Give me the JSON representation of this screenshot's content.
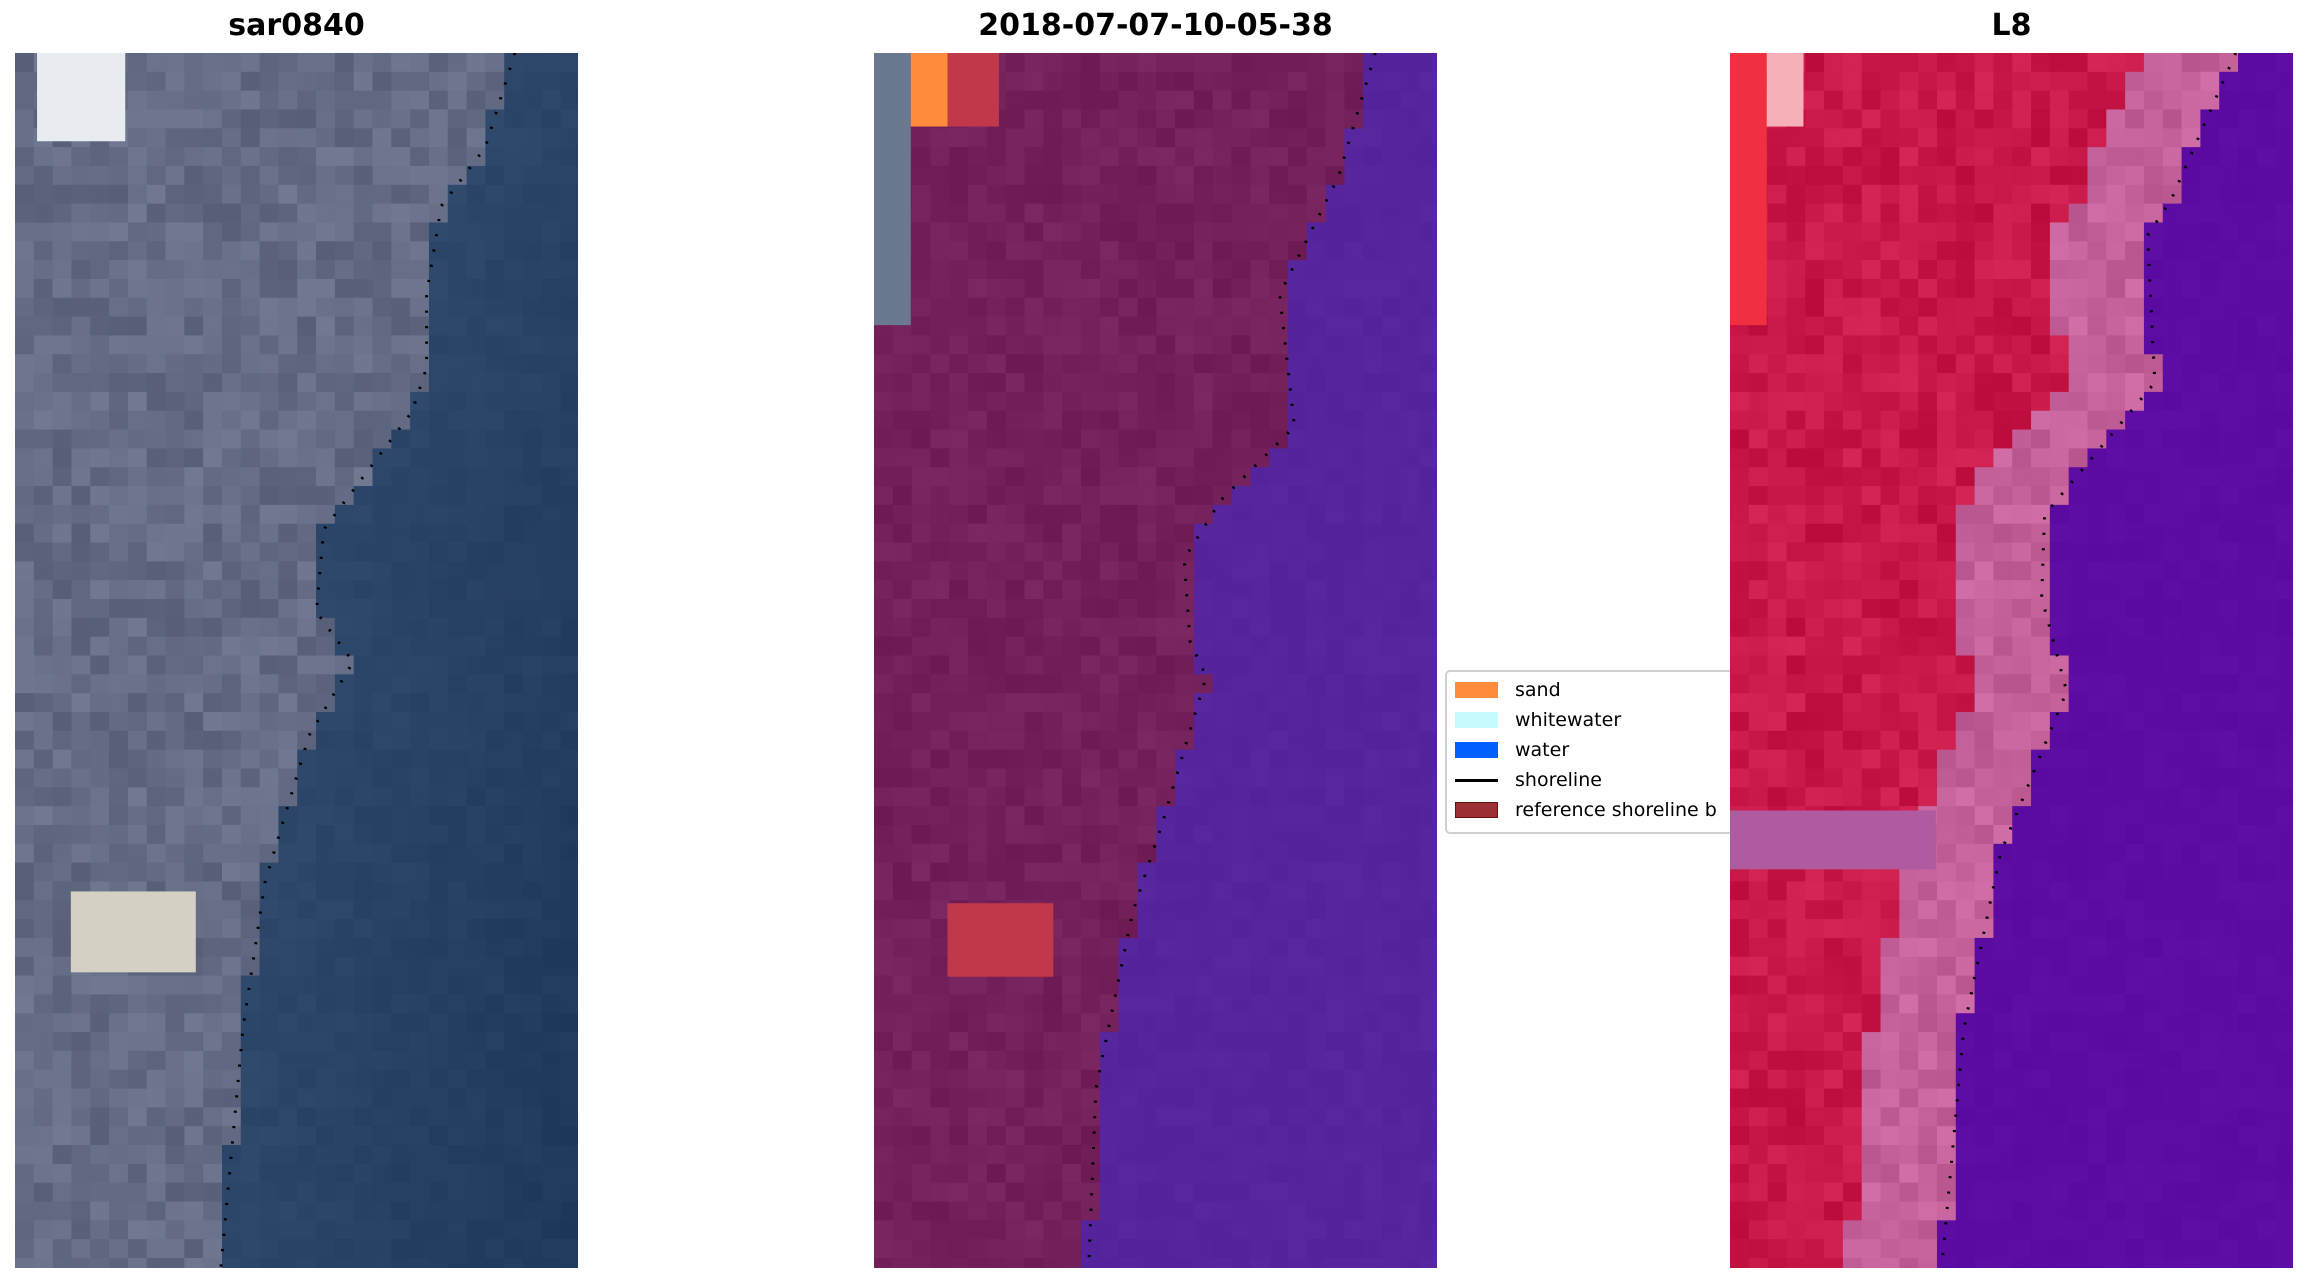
{
  "chart_data": [
    {
      "type": "image",
      "title": "sar0840",
      "shoreline": "dotted black",
      "colors": {
        "land": "#636c84",
        "water": "#2a4468"
      }
    },
    {
      "type": "image",
      "title": "2018-07-07-10-05-38",
      "shoreline": "dotted black",
      "colors": {
        "land": "#74205a",
        "water": "#54229a",
        "sand": "#ff8c3c",
        "reference": "#c0384a"
      }
    },
    {
      "type": "image",
      "title": "L8",
      "shoreline": "dotted black",
      "colors": {
        "land": "#c81848",
        "beach": "#c4609a",
        "water": "#5a0aa0"
      }
    }
  ],
  "legend": {
    "placement": "center",
    "items": [
      {
        "label": "sand",
        "color": "#ff8c3c",
        "kind": "patch"
      },
      {
        "label": "whitewater",
        "color": "#c8fcfc",
        "kind": "patch"
      },
      {
        "label": "water",
        "color": "#0060ff",
        "kind": "patch"
      },
      {
        "label": "shoreline",
        "color": "#000000",
        "kind": "line"
      },
      {
        "label": "reference shoreline b",
        "color": "#9a3034",
        "kind": "patch"
      }
    ]
  }
}
